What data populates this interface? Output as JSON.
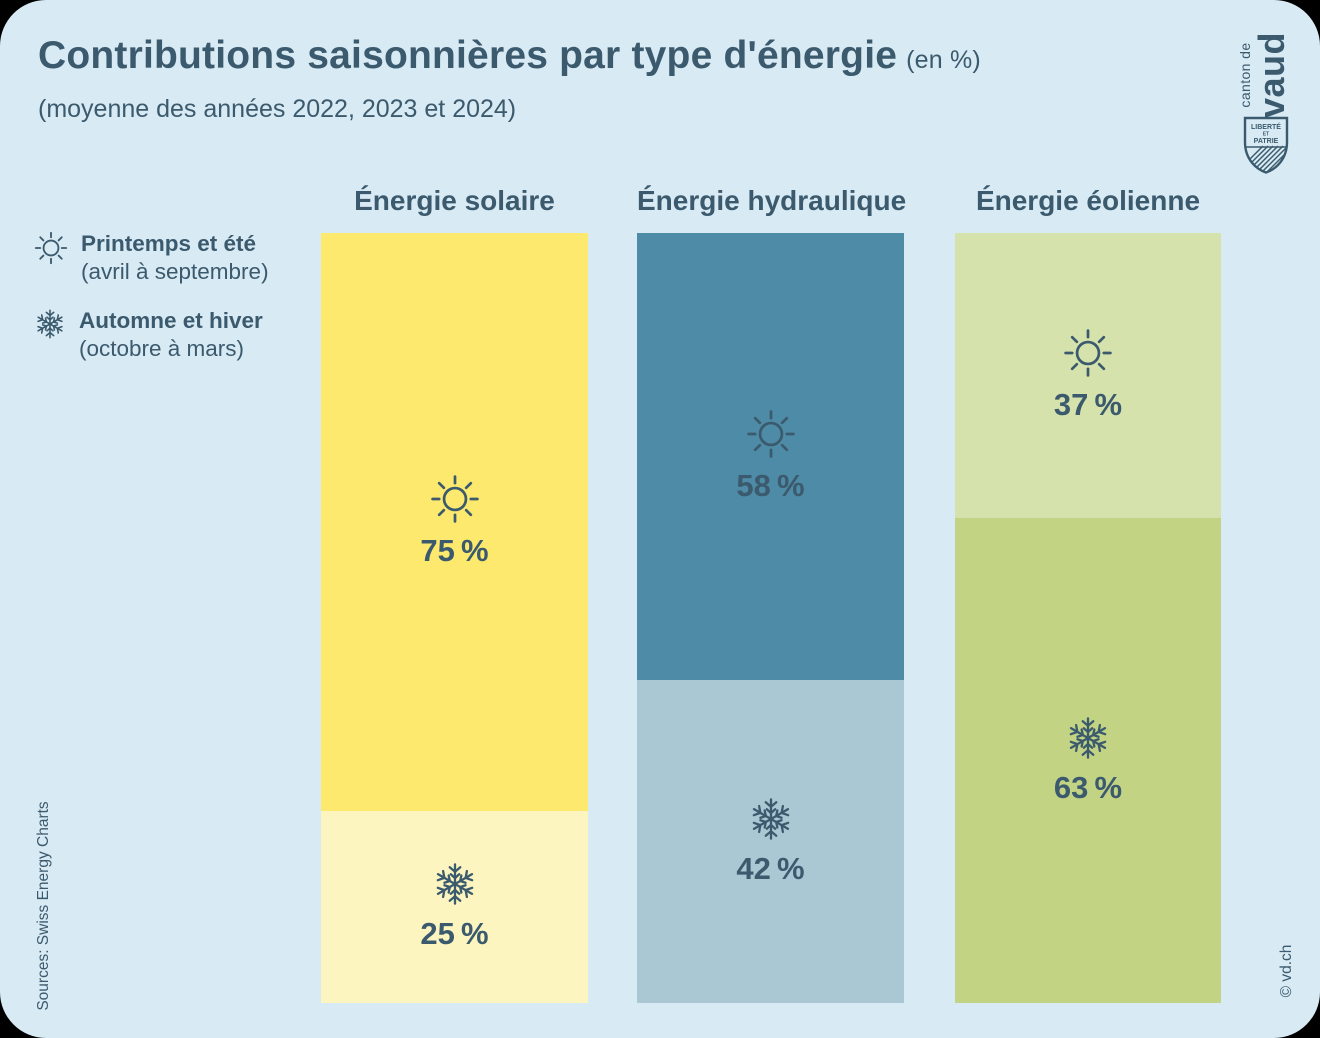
{
  "header": {
    "title": "Contributions saisonnières par type d'énergie",
    "title_suffix": "(en %)",
    "subtitle": "(moyenne des années 2022, 2023 et 2024)"
  },
  "logo": {
    "name": "Canton de Vaud",
    "text_small": "canton de",
    "text_large": "vaud",
    "motto_line1": "LIBERTÉ",
    "motto_line2": "ET",
    "motto_line3": "PATRIE"
  },
  "legend": {
    "items": [
      {
        "icon": "sun-icon",
        "label": "Printemps et été",
        "sublabel": "(avril à septembre)"
      },
      {
        "icon": "snowflake-icon",
        "label": "Automne et hiver",
        "sublabel": "(octobre à mars)"
      }
    ]
  },
  "chart_data": {
    "type": "bar",
    "stacked": true,
    "orientation": "vertical",
    "unit": "%",
    "title": "Contributions saisonnières par type d'énergie (en %)",
    "subtitle": "(moyenne des années 2022, 2023 et 2024)",
    "categories": [
      "Énergie solaire",
      "Énergie hydraulique",
      "Énergie éolienne"
    ],
    "series": [
      {
        "name": "Printemps et été (avril à septembre)",
        "values": [
          75,
          58,
          37
        ]
      },
      {
        "name": "Automne et hiver (octobre à mars)",
        "values": [
          25,
          42,
          63
        ]
      }
    ],
    "value_range": [
      0,
      100
    ],
    "grid": false,
    "axes_shown": false,
    "legend_position": "left"
  },
  "columns": [
    {
      "title": "Énergie solaire",
      "segments": [
        {
          "season": "printemps-ete",
          "icon": "sun-icon",
          "value": 75,
          "label": "75 %",
          "color": "#fce96d"
        },
        {
          "season": "automne-hiver",
          "icon": "snowflake-icon",
          "value": 25,
          "label": "25 %",
          "color": "#fdf5c0"
        }
      ]
    },
    {
      "title": "Énergie hydraulique",
      "segments": [
        {
          "season": "printemps-ete",
          "icon": "sun-icon",
          "value": 58,
          "label": "58 %",
          "color": "#4d8ba6"
        },
        {
          "season": "automne-hiver",
          "icon": "snowflake-icon",
          "value": 42,
          "label": "42 %",
          "color": "#aac8d4"
        }
      ]
    },
    {
      "title": "Énergie éolienne",
      "segments": [
        {
          "season": "printemps-ete",
          "icon": "sun-icon",
          "value": 37,
          "label": "37 %",
          "color": "#d6e2ac"
        },
        {
          "season": "automne-hiver",
          "icon": "snowflake-icon",
          "value": 63,
          "label": "63 %",
          "color": "#c3d384"
        }
      ]
    }
  ],
  "footer": {
    "source": "Sources: Swiss Energy Charts",
    "copyright": "© vd.ch"
  },
  "colors": {
    "background": "#d8eaf4",
    "text": "#3b5a6d",
    "solar_summer": "#fce96d",
    "solar_winter": "#fdf5c0",
    "hydraulic_summer": "#4d8ba6",
    "hydraulic_winter": "#aac8d4",
    "wind_summer": "#d6e2ac",
    "wind_winter": "#c3d384"
  }
}
